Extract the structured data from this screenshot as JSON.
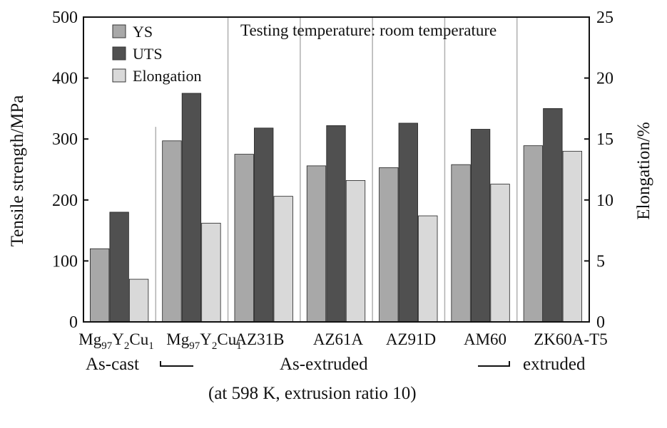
{
  "chart_data": {
    "type": "bar",
    "annotation": "Testing temperature: room temperature",
    "ylabel": "Tensile strength/MPa",
    "y2label": "Elongation/%",
    "ylim": [
      0,
      500
    ],
    "y2lim": [
      0,
      25
    ],
    "yticks": [
      "0",
      "100",
      "200",
      "300",
      "400",
      "500"
    ],
    "y2ticks": [
      "0",
      "5",
      "10",
      "15",
      "20",
      "25"
    ],
    "categories": [
      {
        "base": "Mg",
        "sub1": "97",
        "mid1": "Y",
        "sub2": "2",
        "mid2": "Cu",
        "sub3": "1"
      },
      {
        "base": "Mg",
        "sub1": "97",
        "mid1": "Y",
        "sub2": "2",
        "mid2": "Cu",
        "sub3": "1"
      },
      {
        "base": "AZ31B"
      },
      {
        "base": "AZ61A"
      },
      {
        "base": "AZ91D"
      },
      {
        "base": "AM60"
      },
      {
        "base": "ZK60A-T5"
      }
    ],
    "series": [
      {
        "name": "YS",
        "axis": "left",
        "values": [
          120,
          297,
          275,
          256,
          253,
          258,
          289
        ]
      },
      {
        "name": "UTS",
        "axis": "left",
        "values": [
          180,
          375,
          318,
          322,
          326,
          316,
          350
        ]
      },
      {
        "name": "Elongation",
        "axis": "right",
        "values": [
          3.5,
          8.1,
          10.3,
          11.6,
          8.7,
          11.3,
          14.0
        ]
      }
    ],
    "group_labels": {
      "as_cast": "As-cast",
      "as_extruded": "As-extruded",
      "extruded": "extruded",
      "condition": "(at 598 K, extrusion ratio 10)"
    },
    "colors": {
      "YS": "#a8a8a8",
      "UTS": "#505050",
      "Elongation": "#d9d9d9",
      "separator": "#b0b0b0",
      "axis": "#111111"
    },
    "legend_position": "top-left",
    "grid": false
  }
}
